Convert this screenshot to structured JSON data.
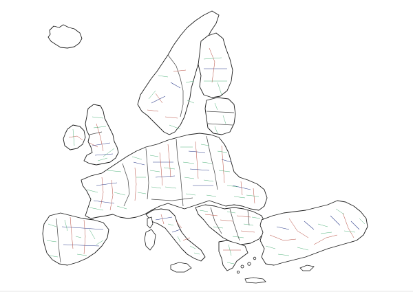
{
  "map": {
    "type": "administrative-boundaries",
    "region": "Europe",
    "background_color": "#ffffff",
    "coastline_color": "#1a1a1a",
    "boundary_colors": {
      "national": "#4a4a4a",
      "level1": "#2a3a8a",
      "level2": "#b5473a",
      "level3": "#3aa86a"
    },
    "landmasses": [
      "iceland",
      "ireland",
      "great-britain",
      "scandinavia",
      "finland",
      "baltics",
      "continental-europe",
      "iberia",
      "italy",
      "sardinia",
      "corsica",
      "sicily",
      "balkans",
      "greece",
      "crete",
      "cyprus",
      "turkey"
    ]
  }
}
